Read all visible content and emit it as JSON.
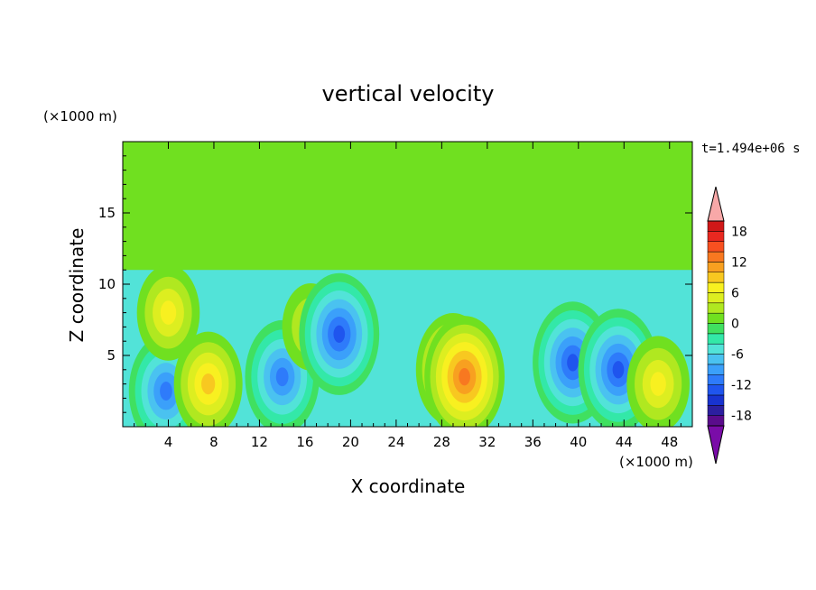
{
  "chart_data": {
    "type": "heatmap",
    "title": "vertical velocity",
    "xlabel": "X coordinate",
    "ylabel": "Z coordinate",
    "x_units": "(×1000 m)",
    "y_units": "(×1000 m)",
    "time_label": "t=1.494e+06 s",
    "xlim": [
      0,
      50
    ],
    "ylim": [
      0,
      20
    ],
    "x_ticks": [
      "4",
      "8",
      "12",
      "16",
      "20",
      "24",
      "28",
      "32",
      "36",
      "40",
      "44",
      "48"
    ],
    "y_ticks": [
      "5",
      "10",
      "15"
    ],
    "colorbar": {
      "levels": [
        -20,
        -18,
        -16,
        -14,
        -12,
        -10,
        -8,
        -6,
        -4,
        -2,
        0,
        2,
        4,
        6,
        8,
        10,
        12,
        14,
        16,
        18,
        20
      ],
      "tick_labels": [
        "18",
        "12",
        "6",
        "0",
        "-6",
        "-12",
        "-18"
      ],
      "colors": [
        "#5a0c8c",
        "#2c1fa0",
        "#1833d0",
        "#1f55ee",
        "#2e7bfa",
        "#3ba0fa",
        "#4ac2f0",
        "#52e3d8",
        "#33e8a8",
        "#40e060",
        "#70e020",
        "#b0e820",
        "#ddee20",
        "#f8f020",
        "#f8c820",
        "#f8a020",
        "#f87820",
        "#f85020",
        "#e82820",
        "#d01818"
      ],
      "under_color": "#7a0ca8",
      "over_color": "#f8a8a8"
    },
    "features": [
      {
        "x": 3.8,
        "z": 2.5,
        "w": -12,
        "kind": "downdraft"
      },
      {
        "x": 4.0,
        "z": 8.0,
        "w": 8,
        "kind": "updraft"
      },
      {
        "x": 7.5,
        "z": 3.0,
        "w": 10,
        "kind": "updraft"
      },
      {
        "x": 14.0,
        "z": 3.5,
        "w": -12,
        "kind": "downdraft"
      },
      {
        "x": 16.5,
        "z": 7.0,
        "w": 6,
        "kind": "updraft"
      },
      {
        "x": 19.0,
        "z": 6.5,
        "w": -14,
        "kind": "downdraft"
      },
      {
        "x": 29.0,
        "z": 4.0,
        "w": 12,
        "kind": "updraft"
      },
      {
        "x": 30.0,
        "z": 3.5,
        "w": 14,
        "kind": "updraft"
      },
      {
        "x": 39.5,
        "z": 4.5,
        "w": -14,
        "kind": "downdraft"
      },
      {
        "x": 43.5,
        "z": 4.0,
        "w": -14,
        "kind": "downdraft"
      },
      {
        "x": 47.0,
        "z": 3.0,
        "w": 8,
        "kind": "updraft"
      }
    ]
  }
}
